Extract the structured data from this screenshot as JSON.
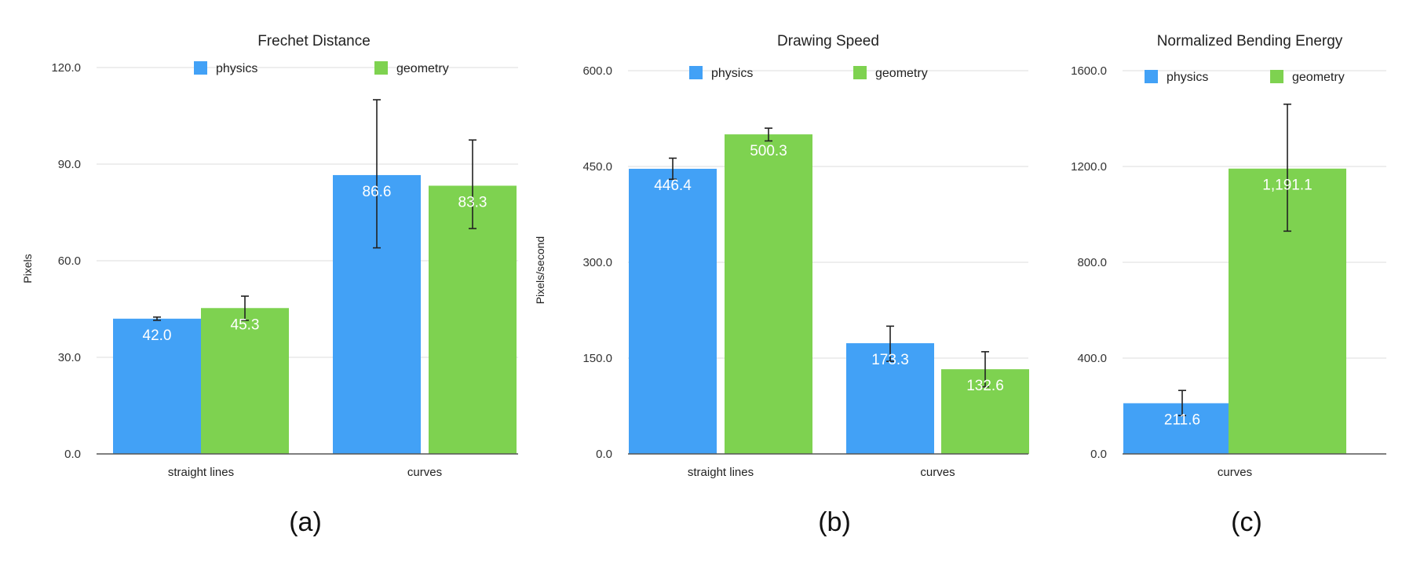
{
  "colors": {
    "physics": "#42a1f6",
    "geometry": "#7ed250"
  },
  "chart_data": [
    {
      "type": "bar",
      "title": "Frechet Distance",
      "ylabel": "Pixels",
      "ylim": [
        0,
        120
      ],
      "yticks": [
        "0.0",
        "30.0",
        "60.0",
        "90.0",
        "120.0"
      ],
      "categories": [
        "straight lines",
        "curves"
      ],
      "legend_position": "top",
      "series": [
        {
          "name": "physics",
          "values": [
            42.0,
            86.6
          ],
          "labels": [
            "42.0",
            "86.6"
          ],
          "error_low": [
            41.5,
            64.0
          ],
          "error_high": [
            42.5,
            110.0
          ]
        },
        {
          "name": "geometry",
          "values": [
            45.3,
            83.3
          ],
          "labels": [
            "45.3",
            "83.3"
          ],
          "error_low": [
            41.5,
            70.0
          ],
          "error_high": [
            49.0,
            97.5
          ]
        }
      ],
      "panel_label": "(a)"
    },
    {
      "type": "bar",
      "title": "Drawing Speed",
      "ylabel": "Pixels/second",
      "ylim": [
        0,
        600
      ],
      "yticks": [
        "0.0",
        "150.0",
        "300.0",
        "450.0",
        "600.0"
      ],
      "categories": [
        "straight lines",
        "curves"
      ],
      "legend_position": "top",
      "series": [
        {
          "name": "physics",
          "values": [
            446.4,
            173.3
          ],
          "labels": [
            "446.4",
            "173.3"
          ],
          "error_low": [
            430.0,
            145.0
          ],
          "error_high": [
            463.0,
            200.0
          ]
        },
        {
          "name": "geometry",
          "values": [
            500.3,
            132.6
          ],
          "labels": [
            "500.3",
            "132.6"
          ],
          "error_low": [
            490.0,
            105.0
          ],
          "error_high": [
            510.0,
            160.0
          ]
        }
      ],
      "panel_label": "(b)"
    },
    {
      "type": "bar",
      "title": "Normalized Bending Energy",
      "ylabel": "",
      "ylim": [
        0,
        1600
      ],
      "yticks": [
        "0.0",
        "400.0",
        "800.0",
        "1200.0",
        "1600.0"
      ],
      "categories": [
        "curves"
      ],
      "legend_position": "top",
      "series": [
        {
          "name": "physics",
          "values": [
            211.6
          ],
          "labels": [
            "211.6"
          ],
          "error_low": [
            160.0
          ],
          "error_high": [
            265.0
          ]
        },
        {
          "name": "geometry",
          "values": [
            1191.1
          ],
          "labels": [
            "1,191.1"
          ],
          "error_low": [
            930.0
          ],
          "error_high": [
            1460.0
          ]
        }
      ],
      "panel_label": "(c)"
    }
  ]
}
